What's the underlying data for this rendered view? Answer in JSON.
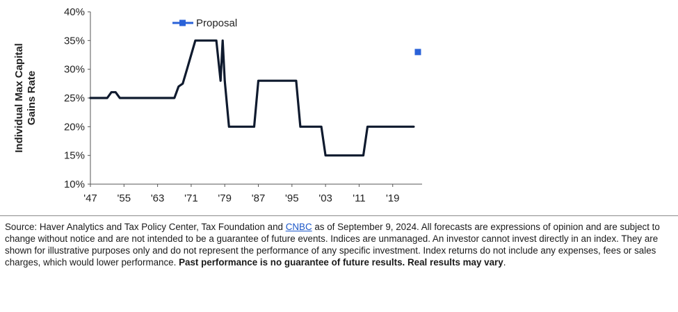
{
  "chart_data": {
    "type": "line",
    "ylabel": "Individual Max Capital Gains Rate",
    "ylim": [
      10,
      40
    ],
    "yticks": [
      "10%",
      "15%",
      "20%",
      "25%",
      "30%",
      "35%",
      "40%"
    ],
    "xlim": [
      1947,
      2026
    ],
    "xtick_values": [
      1947,
      1955,
      1963,
      1971,
      1979,
      1987,
      1995,
      2003,
      2011,
      2019
    ],
    "xticks": [
      "'47",
      "'55",
      "'63",
      "'71",
      "'79",
      "'87",
      "'95",
      "'03",
      "'11",
      "'19"
    ],
    "series": [
      {
        "name": "",
        "color": "#0f1a2e",
        "x": [
          1947,
          1951,
          1952,
          1953,
          1954,
          1967,
          1968,
          1969,
          1970,
          1971,
          1972,
          1973,
          1977,
          1978,
          1978.5,
          1979,
          1980,
          1986,
          1987,
          1996,
          1997,
          2001,
          2002,
          2003,
          2011,
          2012,
          2013,
          2024
        ],
        "y": [
          25,
          25,
          26,
          26,
          25,
          25,
          27,
          27.5,
          30,
          32.5,
          35,
          35,
          35,
          28,
          35,
          28,
          20,
          20,
          28,
          28,
          20,
          20,
          20,
          15,
          15,
          15,
          20,
          20
        ]
      },
      {
        "name": "Proposal",
        "color": "#2a62d8",
        "x": [
          2025
        ],
        "y": [
          33
        ]
      }
    ],
    "legend": "top-center",
    "grid": false
  },
  "footnote": {
    "source_prefix": "Source: Haver Analytics and Tax Policy Center, Tax Foundation and ",
    "link_text": "CNBC",
    "source_suffix": " as of September 9, 2024. All forecasts are expressions of opinion and are subject to change without notice and are not intended to be a guarantee of future events. Indices are unmanaged. An investor cannot invest directly in an index. They are shown for illustrative purposes only and do not represent the performance of any specific investment. Index returns do not include any expenses, fees or sales charges, which would lower performance. ",
    "disclaimer_bold": "Past performance is no guarantee of future results. Real results may vary",
    "end": "."
  }
}
